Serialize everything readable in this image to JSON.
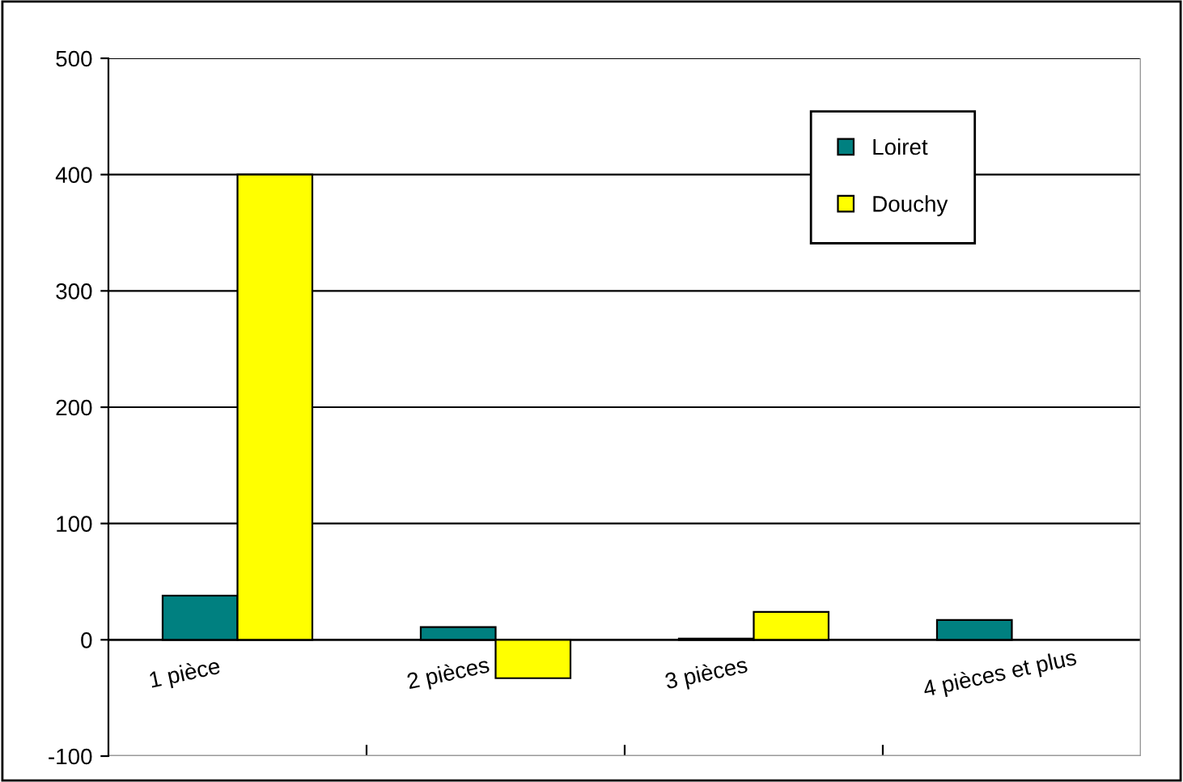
{
  "chart_data": {
    "type": "bar",
    "categories": [
      "1 pièce",
      "2 pièces",
      "3 pièces",
      "4 pièces et plus"
    ],
    "series": [
      {
        "name": "Loiret",
        "color": "#008080",
        "values": [
          38,
          11,
          1,
          17
        ]
      },
      {
        "name": "Douchy",
        "color": "#ffff00",
        "values": [
          400,
          -33,
          24,
          null
        ]
      }
    ],
    "ylim": [
      -100,
      500
    ],
    "yticks": [
      -100,
      0,
      100,
      200,
      300,
      400,
      500
    ],
    "grid": "y",
    "legend": "top right"
  }
}
